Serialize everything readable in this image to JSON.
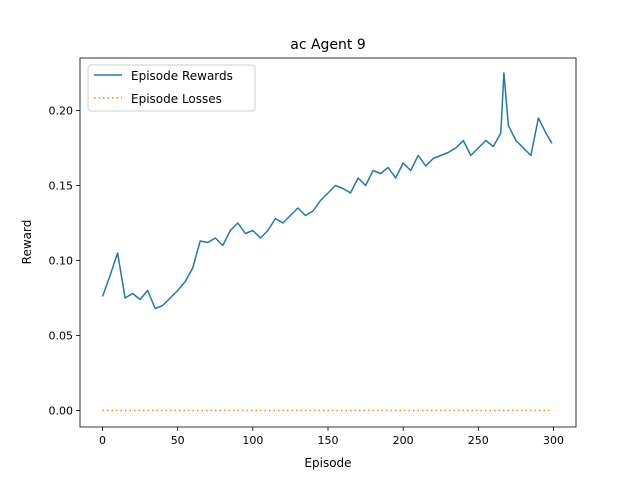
{
  "chart_data": {
    "type": "line",
    "title": "ac Agent 9",
    "xlabel": "Episode",
    "ylabel": "Reward",
    "xlim": [
      -15,
      315
    ],
    "ylim": [
      -0.011,
      0.235
    ],
    "xticks": [
      0,
      50,
      100,
      150,
      200,
      250,
      300
    ],
    "yticks": [
      0.0,
      0.05,
      0.1,
      0.15,
      0.2
    ],
    "ytick_labels": [
      "0.00",
      "0.05",
      "0.10",
      "0.15",
      "0.20"
    ],
    "legend_position": "upper-left",
    "grid": false,
    "series": [
      {
        "name": "Episode Rewards",
        "color": "#1f77b4",
        "style": "solid",
        "x": [
          0,
          5,
          10,
          15,
          20,
          25,
          30,
          35,
          40,
          45,
          50,
          55,
          60,
          65,
          70,
          75,
          80,
          85,
          90,
          95,
          100,
          105,
          110,
          115,
          120,
          125,
          130,
          135,
          140,
          145,
          150,
          155,
          160,
          165,
          170,
          175,
          180,
          185,
          190,
          195,
          200,
          205,
          210,
          215,
          220,
          225,
          230,
          235,
          240,
          245,
          250,
          255,
          260,
          265,
          267,
          270,
          275,
          280,
          285,
          290,
          295,
          299
        ],
        "values": [
          0.076,
          0.09,
          0.105,
          0.075,
          0.078,
          0.074,
          0.08,
          0.068,
          0.07,
          0.075,
          0.08,
          0.086,
          0.095,
          0.113,
          0.112,
          0.115,
          0.11,
          0.12,
          0.125,
          0.118,
          0.12,
          0.115,
          0.12,
          0.128,
          0.125,
          0.13,
          0.135,
          0.13,
          0.133,
          0.14,
          0.145,
          0.15,
          0.148,
          0.145,
          0.155,
          0.15,
          0.16,
          0.158,
          0.162,
          0.155,
          0.165,
          0.16,
          0.17,
          0.163,
          0.168,
          0.17,
          0.172,
          0.175,
          0.18,
          0.17,
          0.175,
          0.18,
          0.176,
          0.185,
          0.225,
          0.19,
          0.18,
          0.175,
          0.17,
          0.195,
          0.185,
          0.178
        ]
      },
      {
        "name": "Episode Losses",
        "color": "#ff7f0e",
        "style": "dotted",
        "x": [
          0,
          299
        ],
        "values": [
          0,
          0
        ]
      }
    ]
  }
}
